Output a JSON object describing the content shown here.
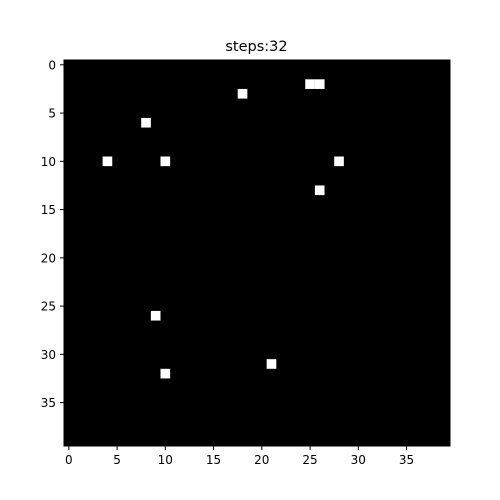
{
  "chart_data": {
    "type": "heatmap",
    "title": "steps:32",
    "xlabel": "",
    "ylabel": "",
    "grid_size": [
      40,
      40
    ],
    "xlim": [
      -0.5,
      39.5
    ],
    "ylim": [
      39.5,
      -0.5
    ],
    "x_ticks": [
      0,
      5,
      10,
      15,
      20,
      25,
      30,
      35
    ],
    "y_ticks": [
      0,
      5,
      10,
      15,
      20,
      25,
      30,
      35
    ],
    "x_tick_labels": [
      "0",
      "5",
      "10",
      "15",
      "20",
      "25",
      "30",
      "35"
    ],
    "y_tick_labels": [
      "0",
      "5",
      "10",
      "15",
      "20",
      "25",
      "30",
      "35"
    ],
    "background_value": 0,
    "colormap": {
      "0": "#000000",
      "1": "#ffffff"
    },
    "active_cells": [
      {
        "row": 2,
        "col": 25,
        "value": 1
      },
      {
        "row": 2,
        "col": 26,
        "value": 1
      },
      {
        "row": 3,
        "col": 18,
        "value": 1
      },
      {
        "row": 6,
        "col": 8,
        "value": 1
      },
      {
        "row": 10,
        "col": 4,
        "value": 1
      },
      {
        "row": 10,
        "col": 10,
        "value": 1
      },
      {
        "row": 10,
        "col": 28,
        "value": 1
      },
      {
        "row": 13,
        "col": 26,
        "value": 1
      },
      {
        "row": 26,
        "col": 9,
        "value": 1
      },
      {
        "row": 31,
        "col": 21,
        "value": 1
      },
      {
        "row": 32,
        "col": 10,
        "value": 1
      }
    ]
  }
}
